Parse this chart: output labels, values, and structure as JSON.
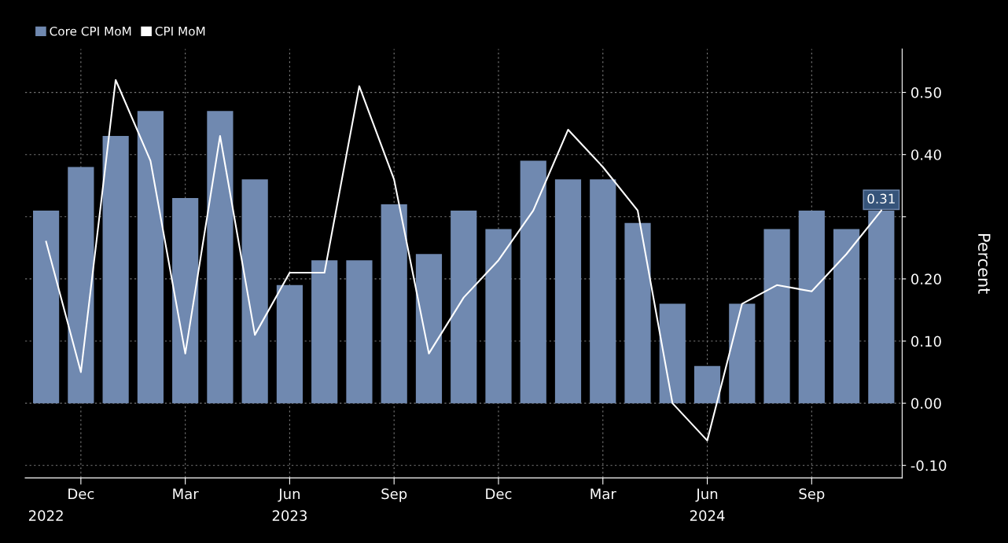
{
  "chart_data": {
    "type": "bar",
    "ylabel": "Percent",
    "categories": [
      null,
      "Dec",
      null,
      null,
      "Mar",
      null,
      null,
      "Jun",
      null,
      null,
      "Sep",
      null,
      null,
      "Dec",
      null,
      null,
      "Mar",
      null,
      null,
      "Jun",
      null,
      null,
      "Sep",
      null,
      null
    ],
    "annotations": [
      "2022",
      "2023",
      "2024"
    ],
    "series": [
      {
        "name": "Core CPI MoM",
        "color": "#7089b0",
        "values": [
          0.31,
          0.38,
          0.43,
          0.47,
          0.33,
          0.47,
          0.36,
          0.19,
          0.23,
          0.23,
          0.32,
          0.24,
          0.31,
          0.28,
          0.39,
          0.36,
          0.36,
          0.29,
          0.16,
          0.06,
          0.16,
          0.28,
          0.31,
          0.28,
          0.31
        ],
        "value_labels": [
          null,
          null,
          null,
          null,
          null,
          null,
          null,
          null,
          null,
          null,
          null,
          null,
          null,
          null,
          null,
          null,
          null,
          null,
          null,
          null,
          null,
          null,
          null,
          null,
          "0.31"
        ]
      },
      {
        "name": "CPI MoM",
        "type": "line",
        "color": "#ffffff",
        "values": [
          0.26,
          0.05,
          0.52,
          0.39,
          0.08,
          0.43,
          0.11,
          0.21,
          0.21,
          0.51,
          0.36,
          0.08,
          0.17,
          0.23,
          0.31,
          0.44,
          0.38,
          0.31,
          0.0,
          -0.06,
          0.16,
          0.19,
          0.18,
          0.24,
          0.31
        ]
      }
    ],
    "ylim": [
      -0.12,
      0.57
    ],
    "yticks": [
      {
        "value": -0.1,
        "label": "-0.10"
      },
      {
        "value": 0.0,
        "label": "0.00"
      },
      {
        "value": 0.1,
        "label": "0.10"
      },
      {
        "value": 0.2,
        "label": "0.20"
      },
      {
        "value": 0.3,
        "label": null
      },
      {
        "value": 0.4,
        "label": "0.40"
      },
      {
        "value": 0.5,
        "label": "0.50"
      }
    ],
    "grid": true,
    "legend": "top left"
  }
}
